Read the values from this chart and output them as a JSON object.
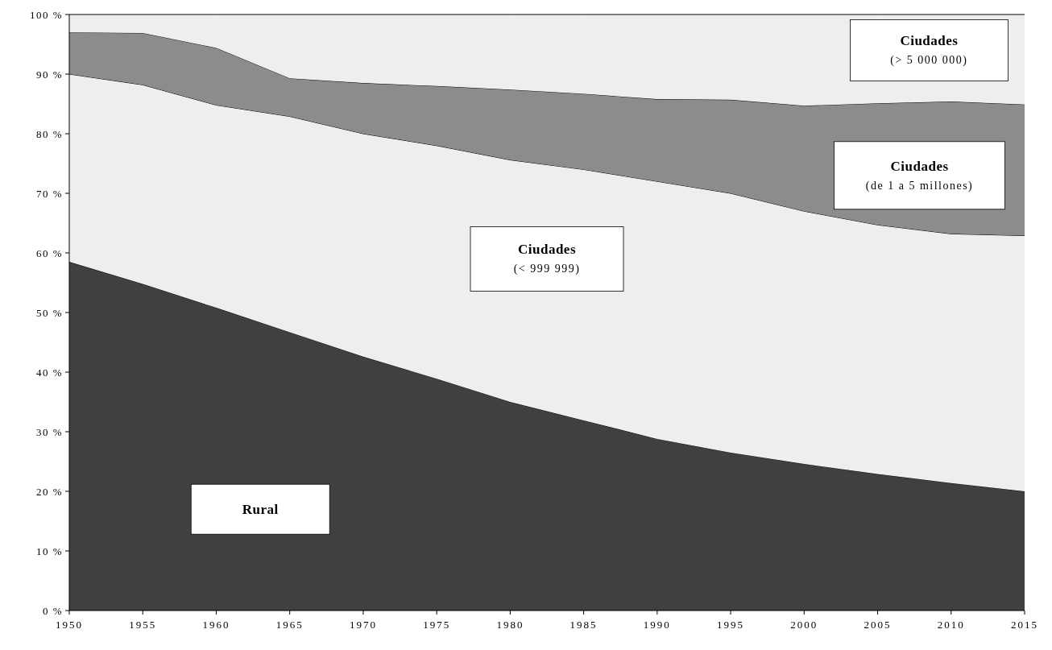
{
  "chart_data": {
    "type": "area",
    "stacked": true,
    "x": [
      1950,
      1955,
      1960,
      1965,
      1970,
      1975,
      1980,
      1985,
      1990,
      1995,
      2000,
      2005,
      2010,
      2015
    ],
    "xlim": [
      1950,
      2015
    ],
    "xticks": [
      1950,
      1955,
      1960,
      1965,
      1970,
      1975,
      1980,
      1985,
      1990,
      1995,
      2000,
      2005,
      2010,
      2015
    ],
    "ylim": [
      0,
      100
    ],
    "yticks": [
      {
        "value": 0,
        "label": "0 %"
      },
      {
        "value": 10,
        "label": "10 %"
      },
      {
        "value": 20,
        "label": "20 %"
      },
      {
        "value": 30,
        "label": "30 %"
      },
      {
        "value": 40,
        "label": "40 %"
      },
      {
        "value": 50,
        "label": "50 %"
      },
      {
        "value": 60,
        "label": "60 %"
      },
      {
        "value": 70,
        "label": "70 %"
      },
      {
        "value": 80,
        "label": "80 %"
      },
      {
        "value": 90,
        "label": "90 %"
      },
      {
        "value": 100,
        "label": "100 %"
      }
    ],
    "grid": false,
    "series": [
      {
        "name": "Rural",
        "color": "#404040",
        "values": [
          58.5,
          54.8,
          50.8,
          46.7,
          42.6,
          38.9,
          35,
          31.9,
          28.8,
          26.5,
          24.6,
          22.9,
          21.4,
          20
        ]
      },
      {
        "name": "Ciudades\n(< 999 999)",
        "color": "#eeeeee",
        "values": [
          31.5,
          33.4,
          34,
          36.2,
          37.4,
          39.1,
          40.6,
          42.1,
          43.2,
          43.5,
          42.4,
          41.8,
          41.8,
          42.9
        ]
      },
      {
        "name": "Ciudades\n(de 1 a 5 millones)",
        "color": "#8c8c8c",
        "values": [
          7,
          8.7,
          9.6,
          6.4,
          8.5,
          10,
          11.8,
          12.7,
          13.8,
          15.7,
          17.7,
          20.4,
          22.2,
          22
        ]
      },
      {
        "name": "Ciudades\n(> 5 000 000)",
        "color": "#eeeeee",
        "values": [
          3,
          3.1,
          5.6,
          10.7,
          11.5,
          12,
          12.6,
          13.3,
          14.2,
          14.3,
          15.3,
          14.9,
          14.6,
          15.1
        ]
      }
    ]
  }
}
